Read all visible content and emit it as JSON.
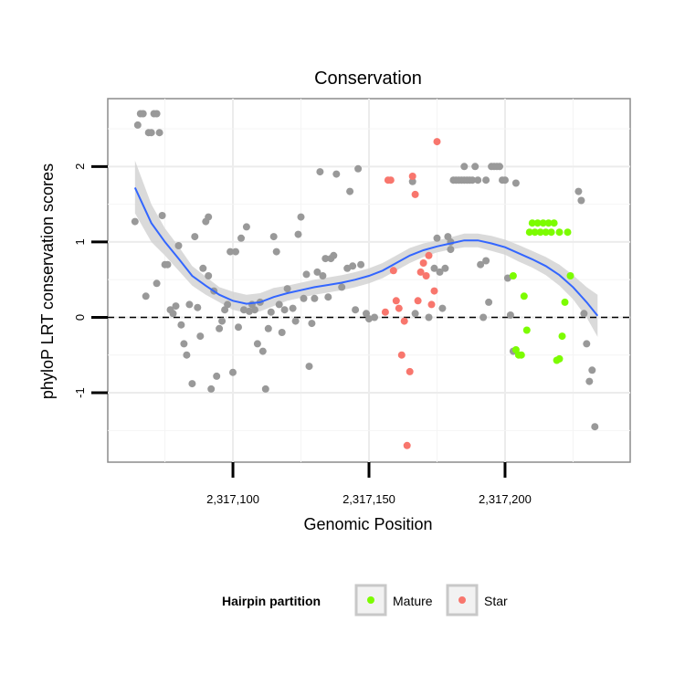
{
  "chart_data": {
    "type": "scatter",
    "title": "Conservation",
    "xlabel": "Genomic Position",
    "ylabel": "phyloP LRT conservation scores",
    "xlim": [
      2317054,
      2317246
    ],
    "ylim": [
      -1.92,
      2.9
    ],
    "x_ticks": [
      2317100,
      2317150,
      2317200
    ],
    "x_tick_labels": [
      "2,317,100",
      "2,317,150",
      "2,317,200"
    ],
    "y_ticks": [
      -1,
      0,
      1,
      2
    ],
    "y_tick_labels": [
      "-1",
      "0",
      "1",
      "2"
    ],
    "reference_line": {
      "y": 0,
      "style": "dashed"
    },
    "grid": true,
    "colors": {
      "other": "#999999",
      "Mature": "#7CFC00",
      "Star": "#F8766D",
      "smooth": "#3366FF",
      "band": "#d4d4d4"
    },
    "legend": {
      "title": "Hairpin partition",
      "position": "bottom",
      "entries": [
        "Mature",
        "Star"
      ]
    },
    "series": [
      {
        "name": "",
        "group": "other",
        "points": [
          [
            2317064,
            1.27
          ],
          [
            2317065,
            2.55
          ],
          [
            2317066,
            2.7
          ],
          [
            2317067,
            2.7
          ],
          [
            2317068,
            0.28
          ],
          [
            2317069,
            2.45
          ],
          [
            2317070,
            2.45
          ],
          [
            2317071,
            2.7
          ],
          [
            2317072,
            2.7
          ],
          [
            2317072,
            0.45
          ],
          [
            2317073,
            2.45
          ],
          [
            2317074,
            1.35
          ],
          [
            2317075,
            0.7
          ],
          [
            2317076,
            0.7
          ],
          [
            2317077,
            0.1
          ],
          [
            2317078,
            0.05
          ],
          [
            2317079,
            0.15
          ],
          [
            2317080,
            0.95
          ],
          [
            2317081,
            -0.1
          ],
          [
            2317082,
            -0.35
          ],
          [
            2317083,
            -0.5
          ],
          [
            2317084,
            0.17
          ],
          [
            2317085,
            -0.88
          ],
          [
            2317086,
            1.07
          ],
          [
            2317087,
            0.13
          ],
          [
            2317088,
            -0.25
          ],
          [
            2317089,
            0.65
          ],
          [
            2317090,
            1.27
          ],
          [
            2317091,
            1.33
          ],
          [
            2317091,
            0.55
          ],
          [
            2317092,
            -0.95
          ],
          [
            2317093,
            0.35
          ],
          [
            2317094,
            -0.78
          ],
          [
            2317095,
            -0.15
          ],
          [
            2317096,
            -0.05
          ],
          [
            2317097,
            0.1
          ],
          [
            2317098,
            0.17
          ],
          [
            2317099,
            0.87
          ],
          [
            2317100,
            -0.73
          ],
          [
            2317101,
            0.87
          ],
          [
            2317102,
            -0.13
          ],
          [
            2317103,
            1.05
          ],
          [
            2317104,
            0.1
          ],
          [
            2317105,
            1.2
          ],
          [
            2317106,
            0.08
          ],
          [
            2317107,
            0.17
          ],
          [
            2317108,
            0.1
          ],
          [
            2317109,
            -0.35
          ],
          [
            2317110,
            0.2
          ],
          [
            2317111,
            -0.45
          ],
          [
            2317112,
            -0.95
          ],
          [
            2317113,
            -0.15
          ],
          [
            2317114,
            0.07
          ],
          [
            2317115,
            1.07
          ],
          [
            2317116,
            0.87
          ],
          [
            2317117,
            0.17
          ],
          [
            2317118,
            -0.2
          ],
          [
            2317119,
            0.1
          ],
          [
            2317120,
            0.38
          ],
          [
            2317122,
            0.12
          ],
          [
            2317123,
            -0.05
          ],
          [
            2317124,
            1.1
          ],
          [
            2317125,
            1.33
          ],
          [
            2317126,
            0.25
          ],
          [
            2317127,
            0.57
          ],
          [
            2317128,
            -0.65
          ],
          [
            2317129,
            -0.08
          ],
          [
            2317130,
            0.25
          ],
          [
            2317131,
            0.6
          ],
          [
            2317132,
            1.93
          ],
          [
            2317133,
            0.55
          ],
          [
            2317134,
            0.78
          ],
          [
            2317135,
            0.27
          ],
          [
            2317136,
            0.78
          ],
          [
            2317137,
            0.82
          ],
          [
            2317138,
            1.9
          ],
          [
            2317140,
            0.4
          ],
          [
            2317142,
            0.65
          ],
          [
            2317143,
            1.67
          ],
          [
            2317144,
            0.68
          ],
          [
            2317145,
            0.1
          ],
          [
            2317146,
            1.97
          ],
          [
            2317147,
            0.7
          ],
          [
            2317149,
            0.05
          ],
          [
            2317150,
            -0.02
          ],
          [
            2317152,
            0.0
          ],
          [
            2317166,
            1.8
          ],
          [
            2317167,
            0.05
          ],
          [
            2317172,
            0.0
          ],
          [
            2317174,
            0.65
          ],
          [
            2317175,
            1.05
          ],
          [
            2317176,
            0.6
          ],
          [
            2317177,
            0.12
          ],
          [
            2317178,
            0.65
          ],
          [
            2317179,
            1.07
          ],
          [
            2317180,
            1.0
          ],
          [
            2317180,
            0.9
          ],
          [
            2317181,
            1.82
          ],
          [
            2317182,
            1.82
          ],
          [
            2317183,
            1.82
          ],
          [
            2317184,
            1.82
          ],
          [
            2317185,
            2.0
          ],
          [
            2317185,
            1.82
          ],
          [
            2317186,
            1.82
          ],
          [
            2317187,
            1.82
          ],
          [
            2317188,
            1.82
          ],
          [
            2317189,
            2.0
          ],
          [
            2317190,
            1.82
          ],
          [
            2317191,
            0.7
          ],
          [
            2317192,
            0.0
          ],
          [
            2317193,
            0.75
          ],
          [
            2317193,
            1.82
          ],
          [
            2317194,
            0.2
          ],
          [
            2317195,
            2.0
          ],
          [
            2317196,
            2.0
          ],
          [
            2317197,
            2.0
          ],
          [
            2317198,
            2.0
          ],
          [
            2317199,
            1.82
          ],
          [
            2317200,
            1.82
          ],
          [
            2317201,
            0.52
          ],
          [
            2317202,
            0.03
          ],
          [
            2317203,
            -0.45
          ],
          [
            2317204,
            1.78
          ],
          [
            2317227,
            1.67
          ],
          [
            2317228,
            1.55
          ],
          [
            2317229,
            0.05
          ],
          [
            2317230,
            -0.35
          ],
          [
            2317231,
            -0.85
          ],
          [
            2317232,
            -0.7
          ],
          [
            2317233,
            -1.45
          ]
        ]
      },
      {
        "name": "Mature",
        "group": "Mature",
        "points": [
          [
            2317203,
            0.55
          ],
          [
            2317204,
            -0.43
          ],
          [
            2317205,
            -0.5
          ],
          [
            2317206,
            -0.5
          ],
          [
            2317207,
            0.28
          ],
          [
            2317208,
            -0.17
          ],
          [
            2317209,
            1.13
          ],
          [
            2317210,
            1.25
          ],
          [
            2317211,
            1.13
          ],
          [
            2317212,
            1.25
          ],
          [
            2317213,
            1.13
          ],
          [
            2317214,
            1.25
          ],
          [
            2317215,
            1.13
          ],
          [
            2317216,
            1.25
          ],
          [
            2317217,
            1.13
          ],
          [
            2317218,
            1.25
          ],
          [
            2317219,
            -0.57
          ],
          [
            2317220,
            -0.55
          ],
          [
            2317220,
            1.13
          ],
          [
            2317221,
            -0.25
          ],
          [
            2317222,
            0.2
          ],
          [
            2317223,
            1.13
          ],
          [
            2317224,
            0.55
          ]
        ]
      },
      {
        "name": "Star",
        "group": "Star",
        "points": [
          [
            2317156,
            0.07
          ],
          [
            2317157,
            1.82
          ],
          [
            2317158,
            1.82
          ],
          [
            2317159,
            0.62
          ],
          [
            2317160,
            0.22
          ],
          [
            2317161,
            0.12
          ],
          [
            2317162,
            -0.5
          ],
          [
            2317163,
            -0.05
          ],
          [
            2317164,
            -1.7
          ],
          [
            2317165,
            -0.72
          ],
          [
            2317166,
            1.87
          ],
          [
            2317167,
            1.63
          ],
          [
            2317168,
            0.22
          ],
          [
            2317169,
            0.6
          ],
          [
            2317170,
            0.72
          ],
          [
            2317171,
            0.55
          ],
          [
            2317172,
            0.82
          ],
          [
            2317173,
            0.17
          ],
          [
            2317174,
            0.35
          ],
          [
            2317175,
            2.33
          ]
        ]
      }
    ],
    "smooth": {
      "x": [
        2317064,
        2317070,
        2317075,
        2317080,
        2317085,
        2317090,
        2317095,
        2317100,
        2317105,
        2317110,
        2317115,
        2317120,
        2317125,
        2317130,
        2317135,
        2317140,
        2317145,
        2317150,
        2317155,
        2317160,
        2317165,
        2317170,
        2317175,
        2317180,
        2317185,
        2317190,
        2317195,
        2317200,
        2317205,
        2317210,
        2317215,
        2317220,
        2317225,
        2317230,
        2317234
      ],
      "y": [
        1.72,
        1.25,
        1.0,
        0.78,
        0.55,
        0.42,
        0.3,
        0.22,
        0.18,
        0.2,
        0.27,
        0.32,
        0.36,
        0.4,
        0.43,
        0.46,
        0.5,
        0.55,
        0.62,
        0.72,
        0.82,
        0.89,
        0.94,
        0.98,
        1.02,
        1.02,
        0.98,
        0.93,
        0.85,
        0.77,
        0.68,
        0.56,
        0.4,
        0.2,
        0.02
      ],
      "lower": [
        1.38,
        1.0,
        0.82,
        0.62,
        0.42,
        0.3,
        0.2,
        0.1,
        0.06,
        0.08,
        0.15,
        0.22,
        0.26,
        0.3,
        0.33,
        0.36,
        0.4,
        0.45,
        0.52,
        0.62,
        0.72,
        0.8,
        0.86,
        0.9,
        0.93,
        0.93,
        0.88,
        0.83,
        0.74,
        0.66,
        0.56,
        0.42,
        0.24,
        0.0,
        -0.26
      ],
      "upper": [
        2.08,
        1.5,
        1.18,
        0.94,
        0.68,
        0.54,
        0.4,
        0.34,
        0.3,
        0.32,
        0.39,
        0.42,
        0.46,
        0.5,
        0.53,
        0.56,
        0.6,
        0.65,
        0.72,
        0.82,
        0.92,
        0.98,
        1.02,
        1.06,
        1.11,
        1.11,
        1.08,
        1.03,
        0.96,
        0.88,
        0.8,
        0.7,
        0.56,
        0.4,
        0.3
      ]
    }
  }
}
